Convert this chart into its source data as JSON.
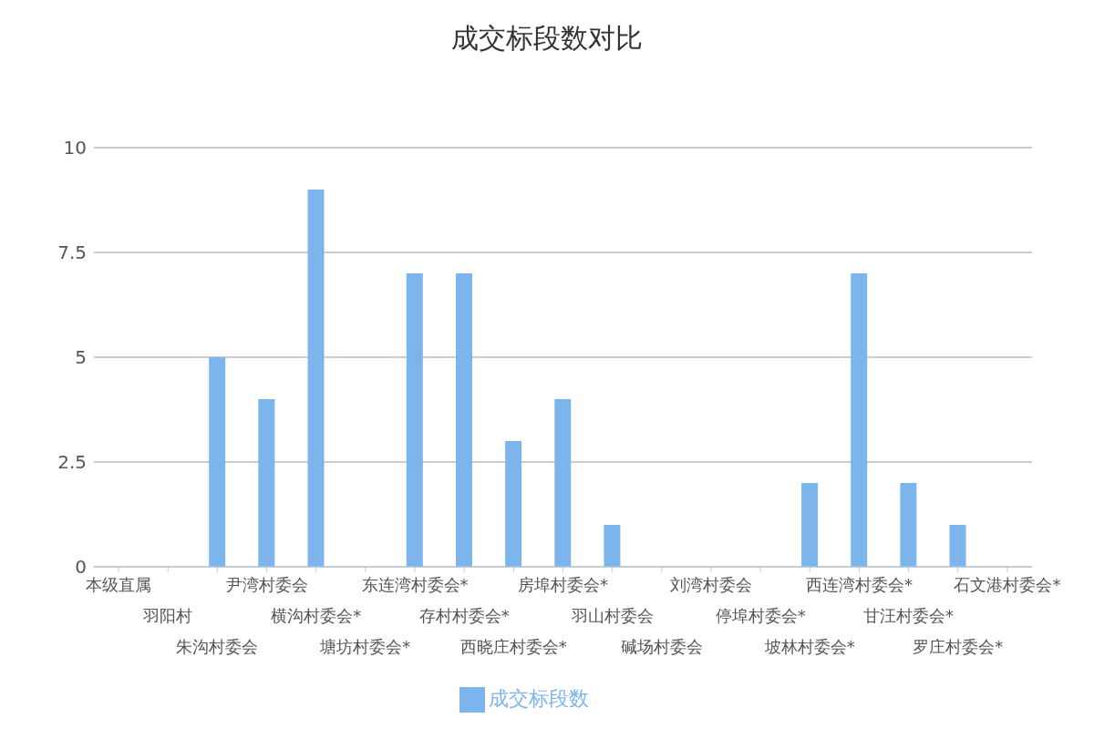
{
  "chart_data": {
    "type": "bar",
    "title": "成交标段数对比",
    "categories": [
      "本级直属",
      "羽阳村",
      "朱沟村委会",
      "尹湾村委会",
      "横沟村委会*",
      "塘坊村委会*",
      "东连湾村委会*",
      "存村村委会*",
      "西晓庄村委会*",
      "房埠村委会*",
      "羽山村委会",
      "碱场村委会",
      "刘湾村委会",
      "停埠村委会*",
      "坡林村委会*",
      "西连湾村委会*",
      "甘汪村委会*",
      "罗庄村委会*",
      "石文港村委会*"
    ],
    "series": [
      {
        "name": "成交标段数",
        "color": "#7cb5ec",
        "values": [
          0,
          0,
          5,
          4,
          9,
          0,
          7,
          7,
          3,
          4,
          1,
          0,
          0,
          0,
          2,
          7,
          2,
          1,
          0
        ]
      }
    ],
    "ylim": [
      0,
      10
    ],
    "yticks": [
      0,
      2.5,
      5,
      7.5,
      10
    ],
    "grid": "y",
    "legend": "bottom"
  }
}
